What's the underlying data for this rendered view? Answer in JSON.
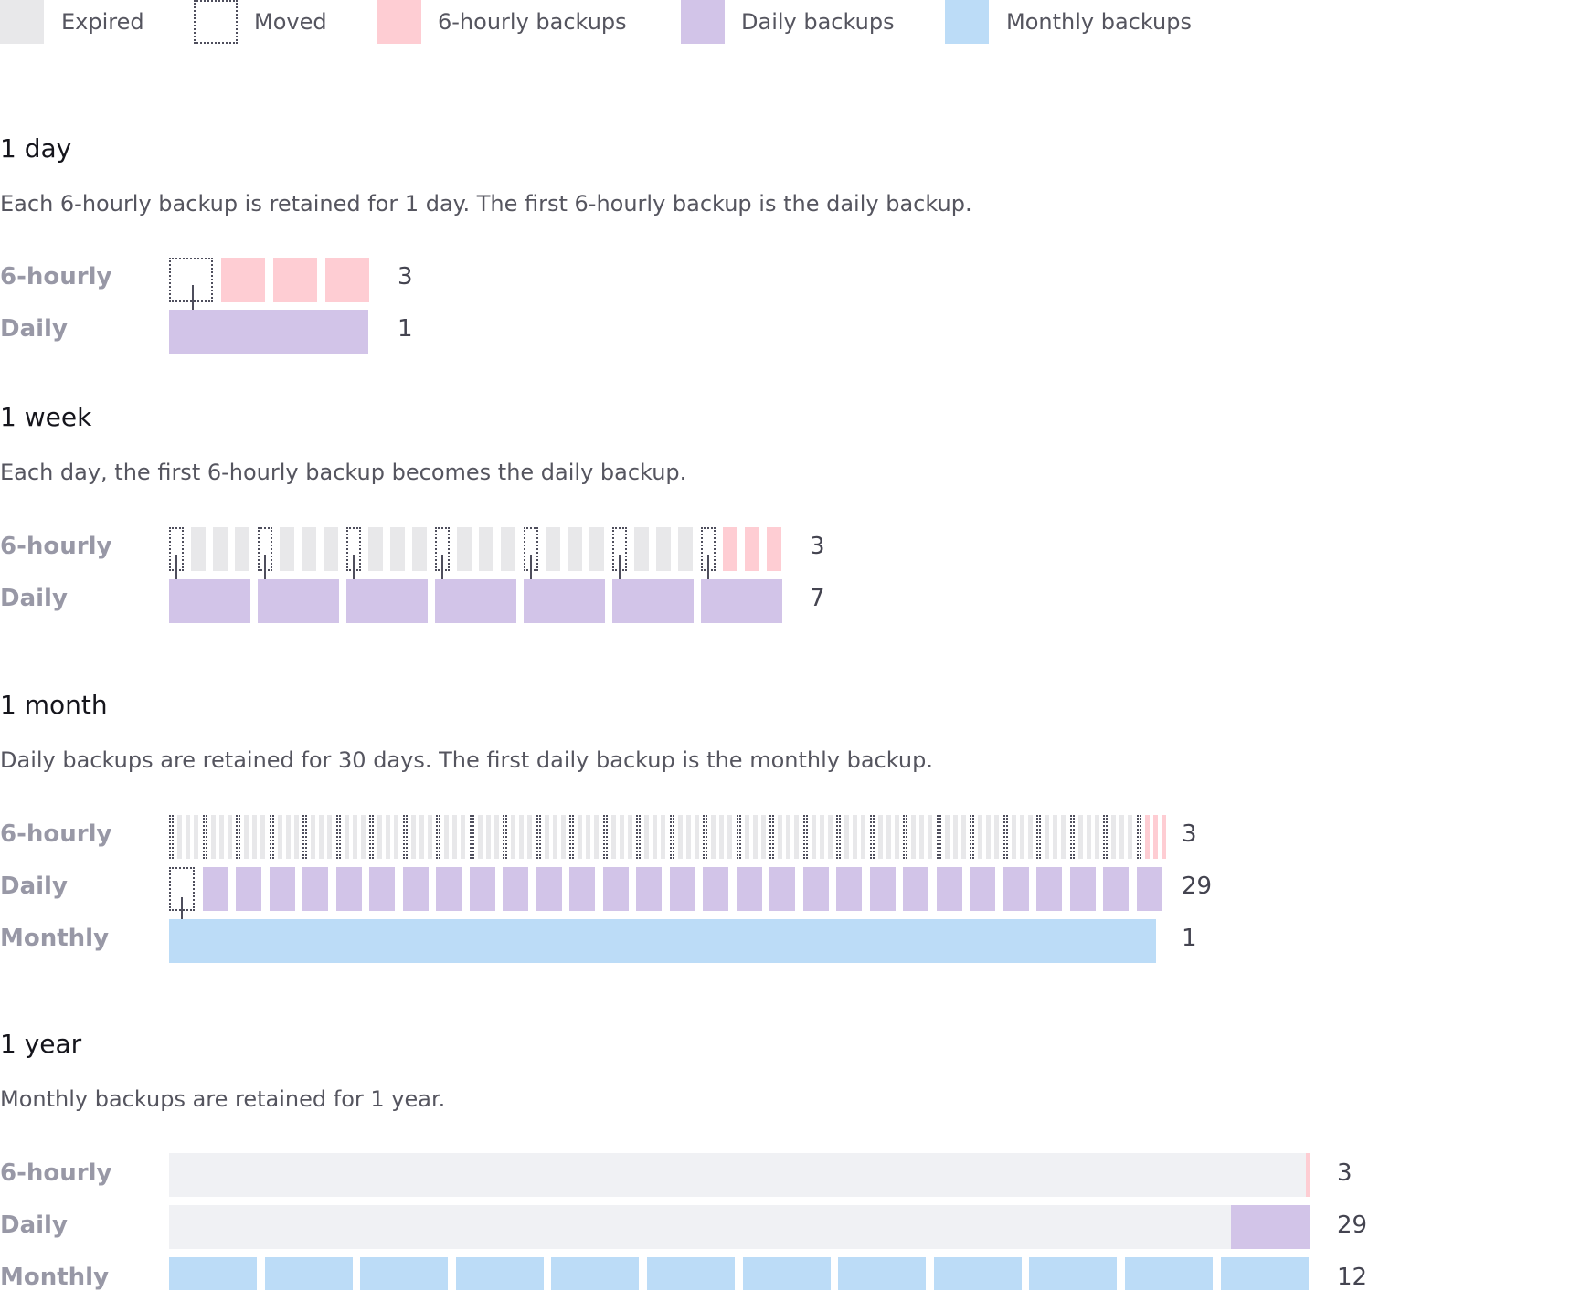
{
  "legend": [
    {
      "label": "Expired",
      "kind": "expired"
    },
    {
      "label": "Moved",
      "kind": "moved"
    },
    {
      "label": "6-hourly backups",
      "kind": "hourly"
    },
    {
      "label": "Daily backups",
      "kind": "daily"
    },
    {
      "label": "Monthly backups",
      "kind": "monthly"
    }
  ],
  "colors": {
    "expired": "#e8e8ea",
    "moved_border": "#4e4e5c",
    "hourly": "#fecdd3",
    "daily": "#d2c4e8",
    "monthly": "#bcdcf7",
    "track_background": "#f0f1f4"
  },
  "sections": [
    {
      "title": "1 day",
      "description": "Each 6-hourly backup is retained for 1 day. The first 6-hourly backup is the daily backup.",
      "rows": [
        {
          "label": "6-hourly",
          "count": "3"
        },
        {
          "label": "Daily",
          "count": "1"
        }
      ]
    },
    {
      "title": "1 week",
      "description": "Each day, the first 6-hourly backup becomes the daily backup.",
      "rows": [
        {
          "label": "6-hourly",
          "count": "3"
        },
        {
          "label": "Daily",
          "count": "7"
        }
      ]
    },
    {
      "title": "1 month",
      "description": "Daily backups are retained for 30 days. The first daily backup is the monthly backup.",
      "rows": [
        {
          "label": "6-hourly",
          "count": "3"
        },
        {
          "label": "Daily",
          "count": "29"
        },
        {
          "label": "Monthly",
          "count": "1"
        }
      ]
    },
    {
      "title": "1 year",
      "description": "Monthly backups are retained for 1 year.",
      "rows": [
        {
          "label": "6-hourly",
          "count": "3"
        },
        {
          "label": "Daily",
          "count": "29"
        },
        {
          "label": "Monthly",
          "count": "12"
        }
      ]
    }
  ]
}
